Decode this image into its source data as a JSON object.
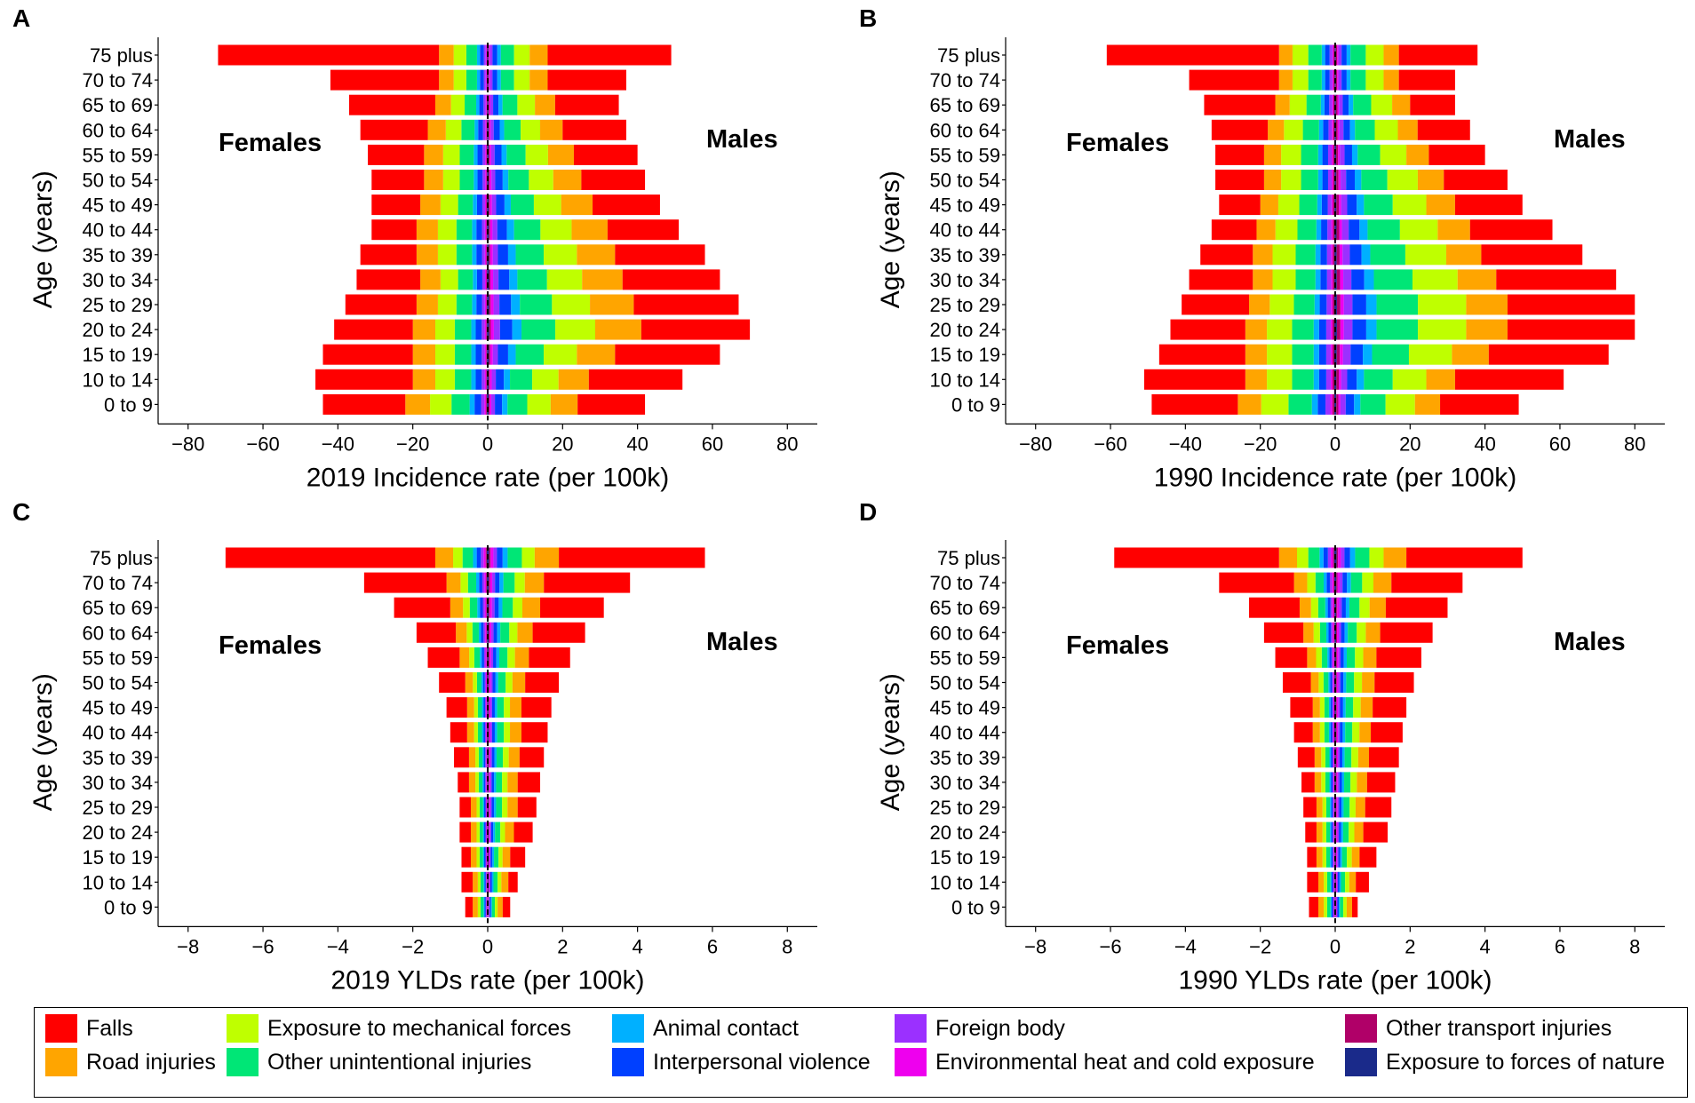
{
  "colors": {
    "Falls": "#ff0000",
    "Road injuries": "#ffa500",
    "Exposure to mechanical forces": "#bfff00",
    "Other unintentional injuries": "#00e676",
    "Animal contact": "#00b0ff",
    "Interpersonal violence": "#0040ff",
    "Foreign body": "#9b30ff",
    "Environmental heat and cold exposure": "#ee00ee",
    "Other transport injuries": "#b00068",
    "Exposure to forces of nature": "#1a2a8a"
  },
  "legend": {
    "items": [
      "Falls",
      "Road injuries",
      "Exposure to mechanical forces",
      "Other unintentional injuries",
      "Animal contact",
      "Interpersonal violence",
      "Foreign body",
      "Environmental heat and cold exposure",
      "Other transport injuries",
      "Exposure to forces of nature"
    ]
  },
  "chart_data": [
    {
      "panel": "A",
      "type": "bar",
      "orientation": "horizontal",
      "stacked": true,
      "xlabel": "2019 Incidence rate (per 100k)",
      "ylabel": "Age (years)",
      "xlim": [
        -88,
        88
      ],
      "xticks": [
        -80,
        -60,
        -40,
        -20,
        0,
        20,
        40,
        60,
        80
      ],
      "left_label": "Females",
      "right_label": "Males",
      "categories": [
        "0 to 9",
        "10 to 14",
        "15 to 19",
        "20 to 24",
        "25 to 29",
        "30 to 34",
        "35 to 39",
        "40 to 44",
        "45 to 49",
        "50 to 54",
        "55 to 59",
        "60 to 64",
        "65 to 69",
        "70 to 74",
        "75 plus"
      ],
      "female_falls": [
        -44,
        -46,
        -44,
        -41,
        -38,
        -35,
        -34,
        -31,
        -31,
        -31,
        -32,
        -34,
        -37,
        -42,
        -72
      ],
      "female_other_total": [
        -22,
        -20,
        -20,
        -20,
        -19,
        -18,
        -19,
        -19,
        -18,
        -17,
        -17,
        -16,
        -14,
        -13,
        -13
      ],
      "male_falls": [
        42,
        52,
        62,
        70,
        67,
        62,
        58,
        51,
        46,
        42,
        40,
        37,
        35,
        37,
        49
      ],
      "male_other_total": [
        24,
        27,
        34,
        41,
        39,
        36,
        34,
        32,
        28,
        25,
        23,
        20,
        18,
        16,
        16
      ],
      "other_share_order": [
        "Road injuries",
        "Exposure to mechanical forces",
        "Other unintentional injuries",
        "Animal contact",
        "Interpersonal violence",
        "Foreign body",
        "Environmental heat and cold exposure",
        "Other transport injuries",
        "Exposure to forces of nature"
      ],
      "other_share": [
        0.3,
        0.26,
        0.22,
        0.06,
        0.08,
        0.04,
        0.02,
        0.01,
        0.01
      ]
    },
    {
      "panel": "B",
      "type": "bar",
      "orientation": "horizontal",
      "stacked": true,
      "xlabel": "1990 Incidence rate (per 100k)",
      "ylabel": "Age (years)",
      "xlim": [
        -88,
        88
      ],
      "xticks": [
        -80,
        -60,
        -40,
        -20,
        0,
        20,
        40,
        60,
        80
      ],
      "left_label": "Females",
      "right_label": "Males",
      "categories": [
        "0 to 9",
        "10 to 14",
        "15 to 19",
        "20 to 24",
        "25 to 29",
        "30 to 34",
        "35 to 39",
        "40 to 44",
        "45 to 49",
        "50 to 54",
        "55 to 59",
        "60 to 64",
        "65 to 69",
        "70 to 74",
        "75 plus"
      ],
      "female_falls": [
        -49,
        -51,
        -47,
        -44,
        -41,
        -39,
        -36,
        -33,
        -31,
        -32,
        -32,
        -33,
        -35,
        -39,
        -61
      ],
      "female_other_total": [
        -26,
        -24,
        -24,
        -24,
        -23,
        -22,
        -22,
        -21,
        -20,
        -19,
        -19,
        -18,
        -16,
        -15,
        -15
      ],
      "male_falls": [
        49,
        61,
        73,
        80,
        80,
        75,
        66,
        58,
        50,
        46,
        40,
        36,
        32,
        32,
        38
      ],
      "male_other_total": [
        28,
        32,
        41,
        46,
        46,
        43,
        39,
        36,
        32,
        29,
        25,
        22,
        20,
        17,
        17
      ],
      "other_share_order": [
        "Road injuries",
        "Exposure to mechanical forces",
        "Other unintentional injuries",
        "Animal contact",
        "Interpersonal violence",
        "Foreign body",
        "Environmental heat and cold exposure",
        "Other transport injuries",
        "Exposure to forces of nature"
      ],
      "other_share": [
        0.24,
        0.28,
        0.24,
        0.06,
        0.08,
        0.05,
        0.02,
        0.02,
        0.01
      ]
    },
    {
      "panel": "C",
      "type": "bar",
      "orientation": "horizontal",
      "stacked": true,
      "xlabel": "2019 YLDs rate (per 100k)",
      "ylabel": "Age (years)",
      "xlim": [
        -8.8,
        8.8
      ],
      "xticks": [
        -8,
        -6,
        -4,
        -2,
        0,
        2,
        4,
        6,
        8
      ],
      "left_label": "Females",
      "right_label": "Males",
      "categories": [
        "0 to 9",
        "10 to 14",
        "15 to 19",
        "20 to 24",
        "25 to 29",
        "30 to 34",
        "35 to 39",
        "40 to 44",
        "45 to 49",
        "50 to 54",
        "55 to 59",
        "60 to 64",
        "65 to 69",
        "70 to 74",
        "75 plus"
      ],
      "female_falls": [
        -0.6,
        -0.7,
        -0.7,
        -0.75,
        -0.75,
        -0.8,
        -0.9,
        -1.0,
        -1.1,
        -1.3,
        -1.6,
        -1.9,
        -2.5,
        -3.3,
        -7.0
      ],
      "female_other_total": [
        -0.4,
        -0.4,
        -0.45,
        -0.45,
        -0.45,
        -0.5,
        -0.5,
        -0.55,
        -0.55,
        -0.6,
        -0.75,
        -0.85,
        -1.0,
        -1.1,
        -1.4
      ],
      "male_falls": [
        0.6,
        0.8,
        1.0,
        1.2,
        1.3,
        1.4,
        1.5,
        1.6,
        1.7,
        1.9,
        2.2,
        2.6,
        3.1,
        3.8,
        5.8
      ],
      "male_other_total": [
        0.4,
        0.55,
        0.6,
        0.7,
        0.8,
        0.8,
        0.85,
        0.9,
        0.9,
        1.0,
        1.1,
        1.2,
        1.4,
        1.5,
        1.9
      ],
      "other_share_order": [
        "Road injuries",
        "Exposure to mechanical forces",
        "Other unintentional injuries",
        "Animal contact",
        "Interpersonal violence",
        "Foreign body",
        "Environmental heat and cold exposure",
        "Other transport injuries",
        "Exposure to forces of nature"
      ],
      "other_share": [
        0.34,
        0.18,
        0.2,
        0.07,
        0.08,
        0.05,
        0.04,
        0.02,
        0.02
      ]
    },
    {
      "panel": "D",
      "type": "bar",
      "orientation": "horizontal",
      "stacked": true,
      "xlabel": "1990 YLDs rate (per 100k)",
      "ylabel": "Age (years)",
      "xlim": [
        -8.8,
        8.8
      ],
      "xticks": [
        -8,
        -6,
        -4,
        -2,
        0,
        2,
        4,
        6,
        8
      ],
      "left_label": "Females",
      "right_label": "Males",
      "categories": [
        "0 to 9",
        "10 to 14",
        "15 to 19",
        "20 to 24",
        "25 to 29",
        "30 to 34",
        "35 to 39",
        "40 to 44",
        "45 to 49",
        "50 to 54",
        "55 to 59",
        "60 to 64",
        "65 to 69",
        "70 to 74",
        "75 plus"
      ],
      "female_falls": [
        -0.7,
        -0.75,
        -0.75,
        -0.8,
        -0.85,
        -0.9,
        -1.0,
        -1.1,
        -1.2,
        -1.4,
        -1.6,
        -1.9,
        -2.3,
        -3.1,
        -5.9
      ],
      "female_other_total": [
        -0.45,
        -0.45,
        -0.5,
        -0.5,
        -0.5,
        -0.55,
        -0.55,
        -0.6,
        -0.6,
        -0.65,
        -0.75,
        -0.85,
        -0.95,
        -1.1,
        -1.5
      ],
      "male_falls": [
        0.6,
        0.9,
        1.1,
        1.4,
        1.5,
        1.6,
        1.7,
        1.8,
        1.9,
        2.1,
        2.3,
        2.6,
        3.0,
        3.4,
        5.0
      ],
      "male_other_total": [
        0.45,
        0.55,
        0.65,
        0.75,
        0.8,
        0.85,
        0.9,
        0.95,
        1.0,
        1.05,
        1.1,
        1.2,
        1.35,
        1.5,
        1.9
      ],
      "other_share_order": [
        "Road injuries",
        "Exposure to mechanical forces",
        "Other unintentional injuries",
        "Animal contact",
        "Interpersonal violence",
        "Foreign body",
        "Environmental heat and cold exposure",
        "Other transport injuries",
        "Exposure to forces of nature"
      ],
      "other_share": [
        0.32,
        0.2,
        0.2,
        0.07,
        0.08,
        0.05,
        0.04,
        0.02,
        0.02
      ]
    }
  ]
}
